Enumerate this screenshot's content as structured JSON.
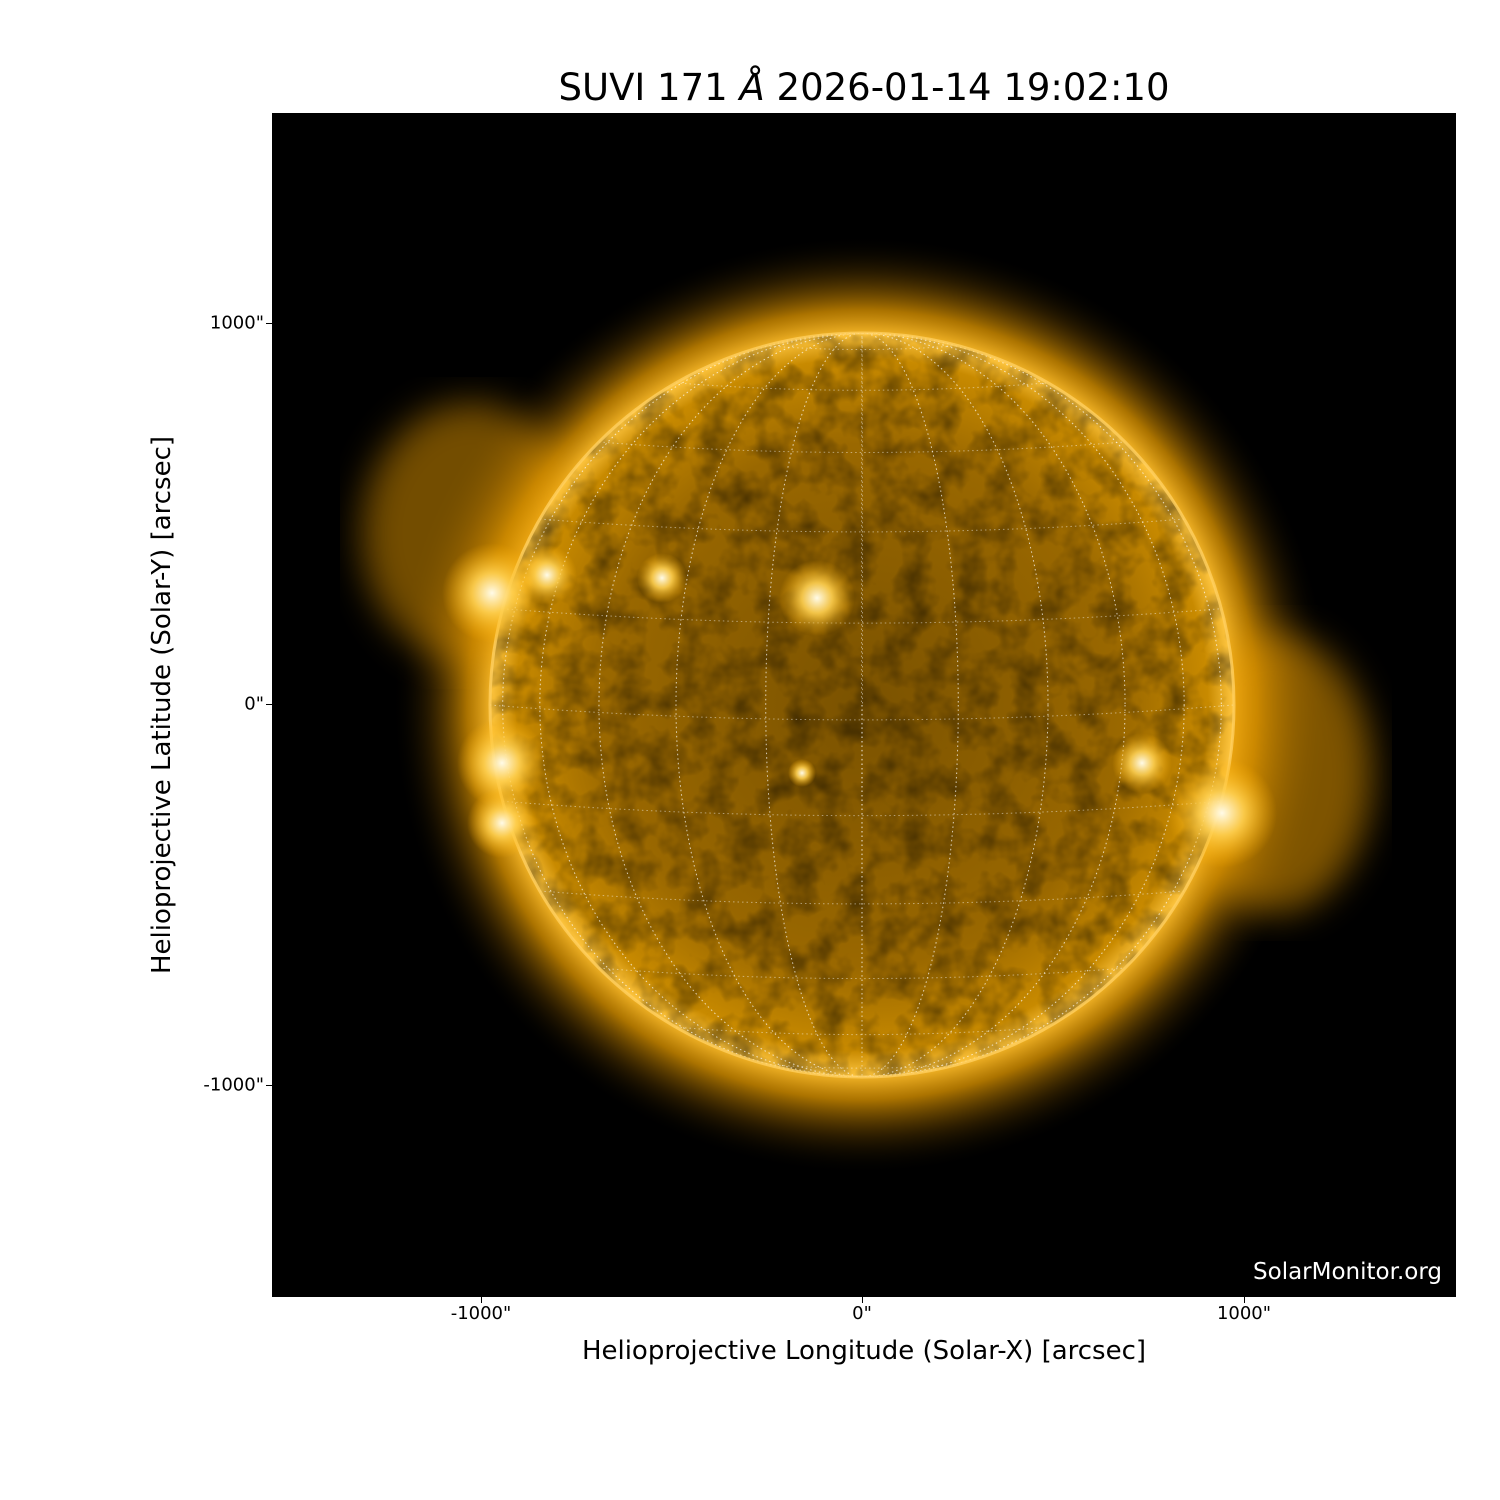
{
  "title": {
    "instrument": "SUVI 171",
    "unit": "Å",
    "datetime": "2026-01-14 19:02:10"
  },
  "watermark": "SolarMonitor.org",
  "axes": {
    "xlabel": "Helioprojective Longitude (Solar-X) [arcsec]",
    "ylabel": "Helioprojective Latitude (Solar-Y) [arcsec]",
    "xticks": [
      "-1000\"",
      "0\"",
      "1000\""
    ],
    "yticks": [
      "1000\"",
      "0\"",
      "-1000\""
    ]
  },
  "colors": {
    "disk": "#b07a00",
    "corona": "#ffb000",
    "background": "#000000"
  }
}
